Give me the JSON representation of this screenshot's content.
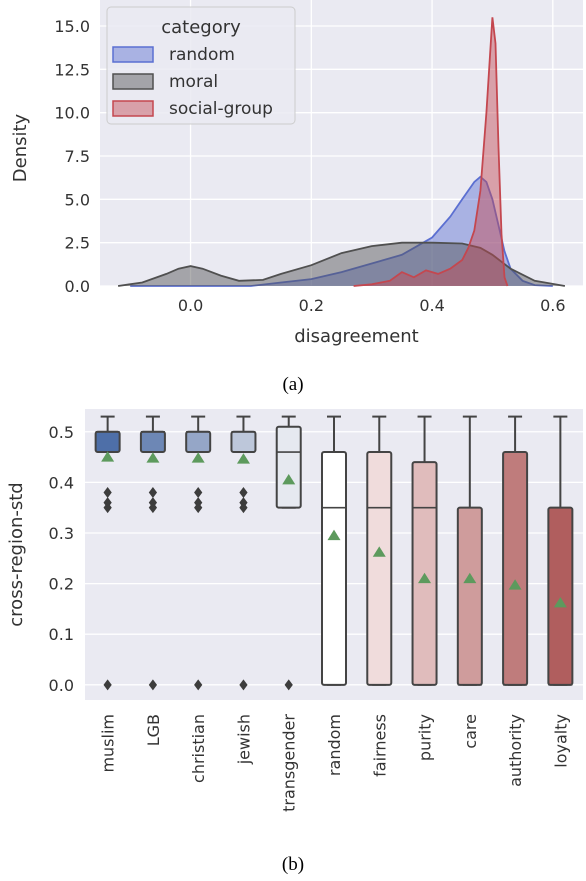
{
  "chart_data": [
    {
      "type": "area",
      "caption": "(a)",
      "xlabel": "disagreement",
      "ylabel": "Density",
      "xlim": [
        -0.15,
        0.65
      ],
      "ylim": [
        0,
        16.5
      ],
      "xticks": [
        "0.0",
        "0.2",
        "0.4",
        "0.6"
      ],
      "yticks": [
        "0.0",
        "2.5",
        "5.0",
        "7.5",
        "10.0",
        "12.5",
        "15.0"
      ],
      "grid": true,
      "legend": {
        "title": "category",
        "position": "top-left",
        "entries": [
          "random",
          "moral",
          "social-group"
        ]
      },
      "series": [
        {
          "name": "random",
          "color": "#5b6fd1",
          "x": [
            -0.1,
            0.0,
            0.1,
            0.15,
            0.2,
            0.25,
            0.3,
            0.35,
            0.4,
            0.43,
            0.45,
            0.47,
            0.48,
            0.49,
            0.5,
            0.51,
            0.52,
            0.53,
            0.55,
            0.57,
            0.6
          ],
          "y": [
            0,
            0,
            0,
            0.2,
            0.4,
            0.8,
            1.3,
            1.8,
            2.8,
            4.0,
            5.0,
            6.0,
            6.3,
            6.0,
            5.0,
            3.5,
            2.0,
            1.0,
            0.3,
            0.05,
            0
          ]
        },
        {
          "name": "moral",
          "color": "#505050",
          "x": [
            -0.12,
            -0.08,
            -0.04,
            -0.02,
            0.0,
            0.02,
            0.05,
            0.08,
            0.12,
            0.15,
            0.2,
            0.25,
            0.3,
            0.35,
            0.4,
            0.45,
            0.48,
            0.5,
            0.53,
            0.57,
            0.62
          ],
          "y": [
            0,
            0.2,
            0.7,
            1.0,
            1.15,
            1.0,
            0.6,
            0.3,
            0.35,
            0.7,
            1.2,
            1.9,
            2.3,
            2.5,
            2.5,
            2.45,
            2.2,
            1.8,
            1.0,
            0.3,
            0
          ]
        },
        {
          "name": "social-group",
          "color": "#c4474f",
          "x": [
            0.27,
            0.3,
            0.33,
            0.35,
            0.37,
            0.39,
            0.41,
            0.43,
            0.45,
            0.46,
            0.47,
            0.48,
            0.49,
            0.5,
            0.505,
            0.51,
            0.515,
            0.52,
            0.525
          ],
          "y": [
            0,
            0.1,
            0.3,
            0.8,
            0.5,
            0.9,
            0.7,
            1.0,
            1.5,
            2.2,
            3.2,
            5.5,
            10.0,
            15.5,
            14.0,
            8.0,
            3.0,
            0.5,
            0
          ]
        }
      ]
    },
    {
      "type": "box",
      "caption": "(b)",
      "ylabel": "cross-region-std",
      "ylim": [
        -0.03,
        0.545
      ],
      "yticks": [
        "0.0",
        "0.1",
        "0.2",
        "0.3",
        "0.4",
        "0.5"
      ],
      "grid": true,
      "categories": [
        "muslim",
        "LGB",
        "christian",
        "jewish",
        "transgender",
        "random",
        "fairness",
        "purity",
        "care",
        "authority",
        "loyalty"
      ],
      "boxes": [
        {
          "label": "muslim",
          "whisker_low": 0.46,
          "q1": 0.46,
          "median": 0.5,
          "q3": 0.5,
          "whisker_high": 0.53,
          "mean": 0.45,
          "outliers": [
            0.38,
            0.36,
            0.35,
            0.0
          ],
          "color": "#4e6fa8"
        },
        {
          "label": "LGB",
          "whisker_low": 0.46,
          "q1": 0.46,
          "median": 0.5,
          "q3": 0.5,
          "whisker_high": 0.53,
          "mean": 0.448,
          "outliers": [
            0.38,
            0.36,
            0.35,
            0.0
          ],
          "color": "#6d87b5"
        },
        {
          "label": "christian",
          "whisker_low": 0.46,
          "q1": 0.46,
          "median": 0.5,
          "q3": 0.5,
          "whisker_high": 0.53,
          "mean": 0.448,
          "outliers": [
            0.38,
            0.36,
            0.35,
            0.0
          ],
          "color": "#95a6c7"
        },
        {
          "label": "jewish",
          "whisker_low": 0.46,
          "q1": 0.46,
          "median": 0.5,
          "q3": 0.5,
          "whisker_high": 0.53,
          "mean": 0.446,
          "outliers": [
            0.38,
            0.36,
            0.35,
            0.0
          ],
          "color": "#bdc7da"
        },
        {
          "label": "transgender",
          "whisker_low": 0.35,
          "q1": 0.35,
          "median": 0.46,
          "q3": 0.51,
          "whisker_high": 0.53,
          "mean": 0.405,
          "outliers": [
            0.0
          ],
          "color": "#e6e9f0"
        },
        {
          "label": "random",
          "whisker_low": 0.0,
          "q1": 0.0,
          "median": 0.35,
          "q3": 0.46,
          "whisker_high": 0.53,
          "mean": 0.295,
          "outliers": [],
          "color": "#ffffff"
        },
        {
          "label": "fairness",
          "whisker_low": 0.0,
          "q1": 0.0,
          "median": 0.35,
          "q3": 0.46,
          "whisker_high": 0.53,
          "mean": 0.262,
          "outliers": [],
          "color": "#f0dcdc"
        },
        {
          "label": "purity",
          "whisker_low": 0.0,
          "q1": 0.0,
          "median": 0.35,
          "q3": 0.44,
          "whisker_high": 0.53,
          "mean": 0.21,
          "outliers": [],
          "color": "#e0bcbc"
        },
        {
          "label": "care",
          "whisker_low": 0.0,
          "q1": 0.0,
          "median": 0.0,
          "q3": 0.35,
          "whisker_high": 0.53,
          "mean": 0.21,
          "outliers": [],
          "color": "#cf9c9c"
        },
        {
          "label": "authority",
          "whisker_low": 0.0,
          "q1": 0.0,
          "median": 0.0,
          "q3": 0.46,
          "whisker_high": 0.53,
          "mean": 0.197,
          "outliers": [],
          "color": "#bf7c7c"
        },
        {
          "label": "loyalty",
          "whisker_low": 0.0,
          "q1": 0.0,
          "median": 0.0,
          "q3": 0.35,
          "whisker_high": 0.53,
          "mean": 0.162,
          "outliers": [],
          "color": "#b05e5e"
        }
      ],
      "mean_marker_color": "#5d9a5d",
      "outlier_color": "#3d3d3d"
    }
  ]
}
